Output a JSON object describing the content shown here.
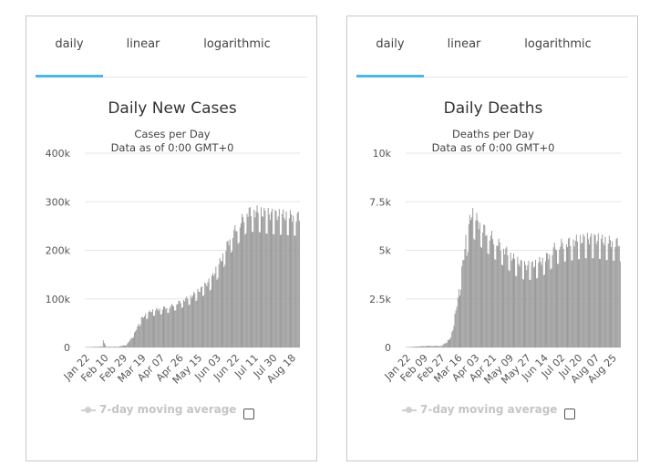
{
  "tabs": [
    "daily",
    "linear",
    "logarithmic"
  ],
  "active_tab": "daily",
  "moving_average_label": "7-day moving average",
  "colors": {
    "bar": "#999999",
    "tab_active": "#4db6e8",
    "grid": "#e6e6e6"
  },
  "chart_data": [
    {
      "type": "bar",
      "title": "Daily New Cases",
      "subtitle_lines": [
        "Cases per Day",
        "Data as of 0:00 GMT+0"
      ],
      "xlabel": "",
      "ylabel": "",
      "ylim": [
        0,
        400000
      ],
      "y_ticks": [
        0,
        100000,
        200000,
        300000,
        400000
      ],
      "y_tick_labels": [
        "0",
        "100k",
        "200k",
        "300k",
        "400k"
      ],
      "x_tick_labels": [
        "Jan 22",
        "Feb 10",
        "Feb 29",
        "Mar 19",
        "Apr 07",
        "Apr 26",
        "May 15",
        "Jun 03",
        "Jun 22",
        "Jul 11",
        "Jul 30",
        "Aug 18"
      ],
      "grid": true,
      "legend": "none",
      "weekly_amplitude": 0.15,
      "anchors": [
        [
          0,
          500
        ],
        [
          17,
          2000
        ],
        [
          18,
          15000
        ],
        [
          21,
          1500
        ],
        [
          32,
          1500
        ],
        [
          41,
          5000
        ],
        [
          48,
          25000
        ],
        [
          56,
          60000
        ],
        [
          65,
          75000
        ],
        [
          75,
          80000
        ],
        [
          85,
          85000
        ],
        [
          95,
          95000
        ],
        [
          105,
          105000
        ],
        [
          115,
          120000
        ],
        [
          125,
          140000
        ],
        [
          135,
          180000
        ],
        [
          145,
          230000
        ],
        [
          155,
          260000
        ],
        [
          161,
          280000
        ],
        [
          172,
          280000
        ],
        [
          182,
          275000
        ],
        [
          213,
          270000
        ]
      ]
    },
    {
      "type": "bar",
      "title": "Daily Deaths",
      "subtitle_lines": [
        "Deaths per Day",
        "Data as of 0:00 GMT+0"
      ],
      "xlabel": "",
      "ylabel": "",
      "ylim": [
        0,
        10000
      ],
      "y_ticks": [
        0,
        2500,
        5000,
        7500,
        10000
      ],
      "y_tick_labels": [
        "0",
        "2.5k",
        "5k",
        "7.5k",
        "10k"
      ],
      "x_tick_labels": [
        "Jan 22",
        "Feb 09",
        "Feb 27",
        "Mar 16",
        "Apr 03",
        "Apr 21",
        "May 09",
        "May 27",
        "Jun 14",
        "Jul 02",
        "Jul 20",
        "Aug 07",
        "Aug 25"
      ],
      "grid": true,
      "legend": "none",
      "weekly_amplitude": 0.18,
      "anchors": [
        [
          0,
          10
        ],
        [
          20,
          80
        ],
        [
          36,
          80
        ],
        [
          45,
          500
        ],
        [
          52,
          2500
        ],
        [
          60,
          5500
        ],
        [
          66,
          7000
        ],
        [
          72,
          6500
        ],
        [
          80,
          6000
        ],
        [
          90,
          5500
        ],
        [
          100,
          5000
        ],
        [
          110,
          4500
        ],
        [
          120,
          4200
        ],
        [
          130,
          4300
        ],
        [
          140,
          4600
        ],
        [
          150,
          5200
        ],
        [
          160,
          5400
        ],
        [
          170,
          5500
        ],
        [
          180,
          5600
        ],
        [
          190,
          5600
        ],
        [
          200,
          5500
        ],
        [
          215,
          5400
        ]
      ]
    }
  ]
}
